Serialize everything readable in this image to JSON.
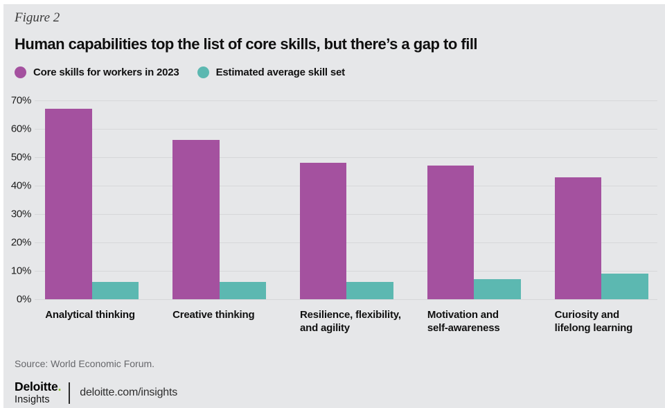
{
  "figure_label": "Figure 2",
  "title": "Human capabilities top the list of core skills, but there’s a gap to fill",
  "legend": [
    {
      "label": "Core skills for workers in 2023",
      "color": "#A4519F"
    },
    {
      "label": "Estimated average skill set",
      "color": "#5CB8B1"
    }
  ],
  "chart_data": {
    "type": "bar",
    "categories": [
      "Analytical thinking",
      "Creative thinking",
      "Resilience, flexibility, and agility",
      "Motivation and self-awareness",
      "Curiosity and lifelong learning"
    ],
    "category_lines": [
      [
        "Analytical thinking"
      ],
      [
        "Creative thinking"
      ],
      [
        "Resilience, flexibility,",
        "and agility"
      ],
      [
        "Motivation and",
        "self-awareness"
      ],
      [
        "Curiosity and",
        "lifelong learning"
      ]
    ],
    "series": [
      {
        "name": "Core skills for workers in 2023",
        "color": "#A4519F",
        "values": [
          67,
          56,
          48,
          47,
          43
        ]
      },
      {
        "name": "Estimated average skill set",
        "color": "#5CB8B1",
        "values": [
          6,
          6,
          6,
          7,
          9
        ]
      }
    ],
    "unit": "%",
    "ylim": [
      0,
      70
    ],
    "yticks": [
      "70%",
      "60%",
      "50%",
      "40%",
      "30%",
      "20%",
      "10%",
      "0%"
    ],
    "grid": true,
    "legend_position": "top-left"
  },
  "source": "Source: World Economic Forum.",
  "footer": {
    "brand": "Deloitte",
    "brand_dot": ".",
    "brand_sub": "Insights",
    "url": "deloitte.com/insights"
  },
  "colors": {
    "background": "#E6E7E9",
    "gridline": "#D6D7D9",
    "purple": "#A4519F",
    "teal": "#5CB8B1",
    "brand_green": "#86BC25",
    "source_text": "#66676B"
  }
}
